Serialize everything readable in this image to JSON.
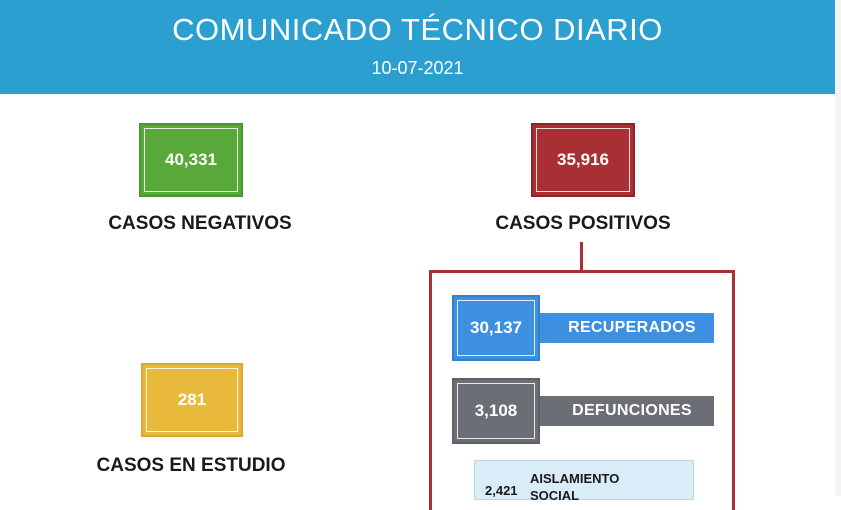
{
  "header": {
    "title": "COMUNICADO TÉCNICO DIARIO",
    "date": "10-07-2021"
  },
  "negativos": {
    "value": "40,331",
    "label": "CASOS NEGATIVOS",
    "color": "#58a83a"
  },
  "positivos": {
    "value": "35,916",
    "label": "CASOS POSITIVOS",
    "color": "#a82f34"
  },
  "estudio": {
    "value": "281",
    "label": "CASOS EN ESTUDIO",
    "color": "#e9b93c"
  },
  "recuperados": {
    "value": "30,137",
    "label": "RECUPERADOS",
    "color": "#3d8fe0"
  },
  "defunciones": {
    "value": "3,108",
    "label": "DEFUNCIONES",
    "color": "#6b6e74"
  },
  "aislamiento": {
    "value": "2,421",
    "label_line1": "AISLAMIENTO",
    "label_line2": "SOCIAL"
  }
}
